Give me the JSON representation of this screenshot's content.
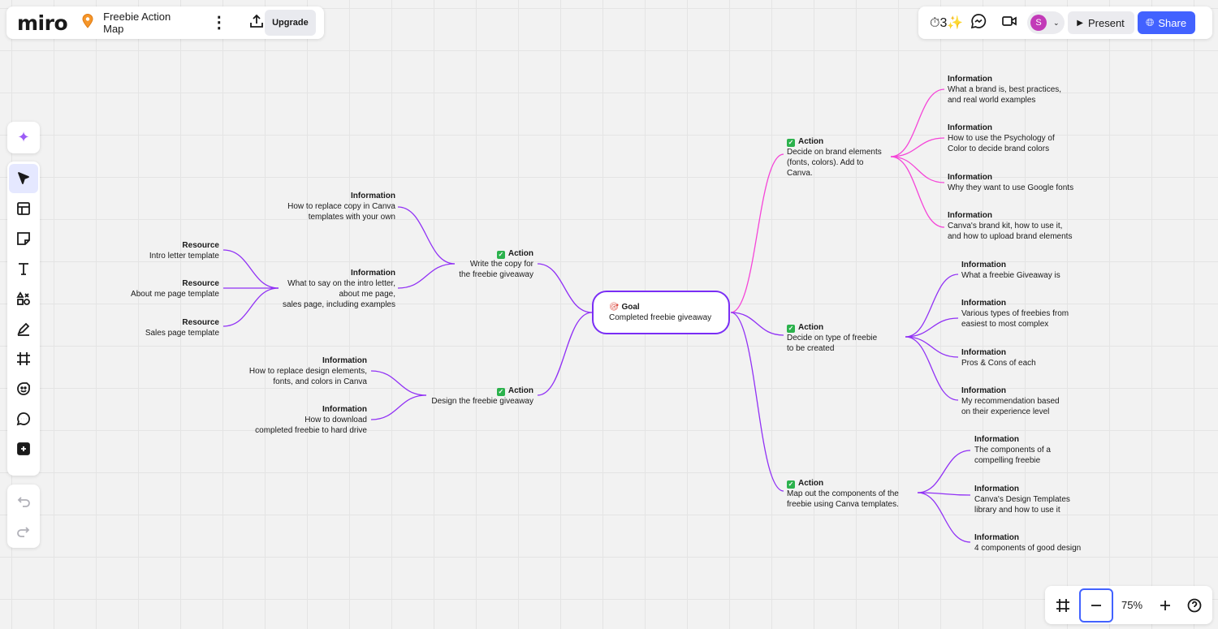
{
  "header": {
    "logo": "miro",
    "board_title": "Freebie Action Map",
    "upgrade_label": "Upgrade",
    "present_label": "Present",
    "share_label": "Share",
    "avatar_initial": "S"
  },
  "colors": {
    "accent": "#4262ff",
    "pink_branch": "#f545d8",
    "purple_branch": "#9131f5",
    "goal_border": "#7a2ef5",
    "avatar": "#c23ab8"
  },
  "zoom": {
    "level": "75%"
  },
  "map": {
    "goal": {
      "title": "Goal",
      "text": "Completed freebie giveaway"
    },
    "nodes": [
      {
        "id": "a1",
        "title": "Action",
        "text": "Decide on brand elements\n(fonts, colors). Add to\nCanva."
      },
      {
        "id": "a2",
        "title": "Action",
        "text": "Decide on type of freebie\nto be created"
      },
      {
        "id": "a3",
        "title": "Action",
        "text": "Map out the components of the\nfreebie using Canva templates."
      },
      {
        "id": "a4",
        "title": "Action",
        "text": "Write the copy for\nthe freebie giveaway"
      },
      {
        "id": "a5",
        "title": "Action",
        "text": "Design the freebie giveaway"
      },
      {
        "id": "i1",
        "title": "Information",
        "text": "What a brand is, best practices,\nand real world examples"
      },
      {
        "id": "i2",
        "title": "Information",
        "text": "How to use the Psychology of\nColor to decide brand colors"
      },
      {
        "id": "i3",
        "title": "Information",
        "text": "Why they want to use Google fonts"
      },
      {
        "id": "i4",
        "title": "Information",
        "text": "Canva's brand kit, how to use it,\nand how to upload brand elements"
      },
      {
        "id": "i5",
        "title": "Information",
        "text": "What a freebie Giveaway is"
      },
      {
        "id": "i6",
        "title": "Information",
        "text": "Various types of freebies from\neasiest to most complex"
      },
      {
        "id": "i7",
        "title": "Information",
        "text": "Pros & Cons of each"
      },
      {
        "id": "i8",
        "title": "Information",
        "text": "My recommendation based\non their experience level"
      },
      {
        "id": "i9",
        "title": "Information",
        "text": "The components of a\ncompelling freebie"
      },
      {
        "id": "i10",
        "title": "Information",
        "text": "Canva's Design Templates\nlibrary and how to use it"
      },
      {
        "id": "i11",
        "title": "Information",
        "text": "4 components of good design"
      },
      {
        "id": "i12",
        "title": "Information",
        "text": "How to replace copy in Canva\ntemplates with your own"
      },
      {
        "id": "i13",
        "title": "Information",
        "text": "What to say on the intro letter,\nabout me page,\nsales page, including examples"
      },
      {
        "id": "i14",
        "title": "Information",
        "text": "How to replace design elements,\nfonts, and colors in Canva"
      },
      {
        "id": "i15",
        "title": "Information",
        "text": "How to download\ncompleted freebie to hard drive"
      },
      {
        "id": "r1",
        "title": "Resource",
        "text": "Intro letter template"
      },
      {
        "id": "r2",
        "title": "Resource",
        "text": "About me page template"
      },
      {
        "id": "r3",
        "title": "Resource",
        "text": "Sales page template"
      }
    ]
  }
}
